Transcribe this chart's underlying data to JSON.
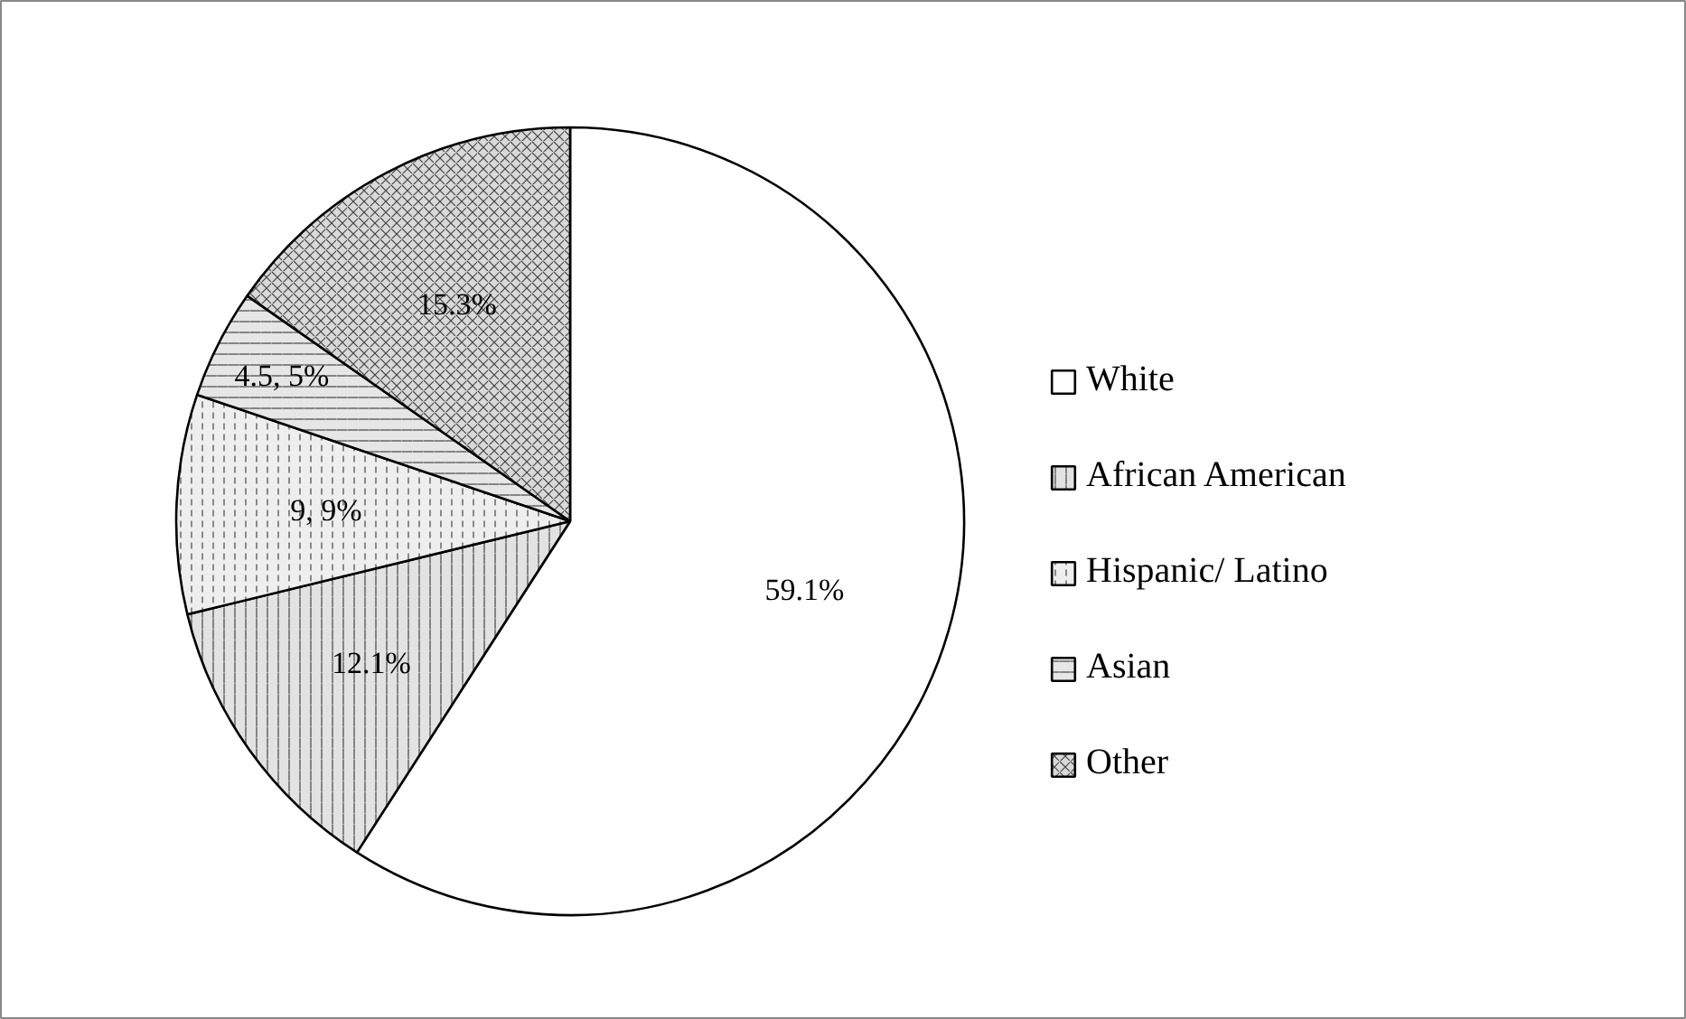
{
  "chart_data": {
    "type": "pie",
    "categories": [
      "White",
      "African American",
      "Hispanic/ Latino",
      "Asian",
      "Other"
    ],
    "values": [
      59.1,
      12.1,
      9,
      4.5,
      15.3
    ],
    "value_labels": [
      "59.1%",
      "12.1%",
      "9, 9%",
      "4.5, 5%",
      "15.3%"
    ],
    "colors": [
      "#ffffff",
      "#e2e2e2",
      "#eeeeee",
      "#e6e6e6",
      "#d9d9d9"
    ],
    "legend": "right"
  }
}
